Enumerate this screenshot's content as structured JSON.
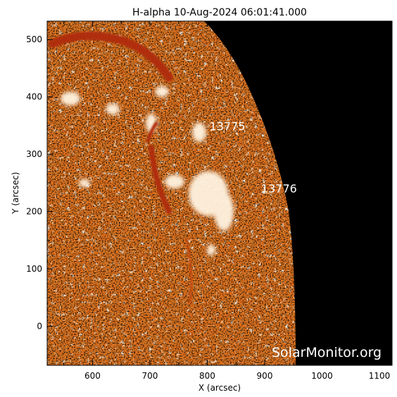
{
  "title": "H-alpha 10-Aug-2024 06:01:41.000",
  "xlabel": "X (arcsec)",
  "ylabel": "Y (arcsec)",
  "x_ticks": [
    "600",
    "700",
    "800",
    "900",
    "1000",
    "1100"
  ],
  "y_ticks": [
    "0",
    "100",
    "200",
    "300",
    "400",
    "500"
  ],
  "x_tick_values": [
    600,
    700,
    800,
    900,
    1000,
    1100
  ],
  "y_tick_values": [
    0,
    100,
    200,
    300,
    400,
    500
  ],
  "x_range": [
    521,
    1122
  ],
  "y_range": [
    -68,
    532
  ],
  "active_regions": [
    {
      "label": "13775",
      "x": 835,
      "y": 342
    },
    {
      "label": "13776",
      "x": 925,
      "y": 233
    }
  ],
  "watermark": "SolarMonitor.org",
  "colors": {
    "disk": "#e9731d",
    "disk_dark": "#b43c0a",
    "bright": "#ffe7c4",
    "space": "#000000",
    "text": "#000000"
  }
}
